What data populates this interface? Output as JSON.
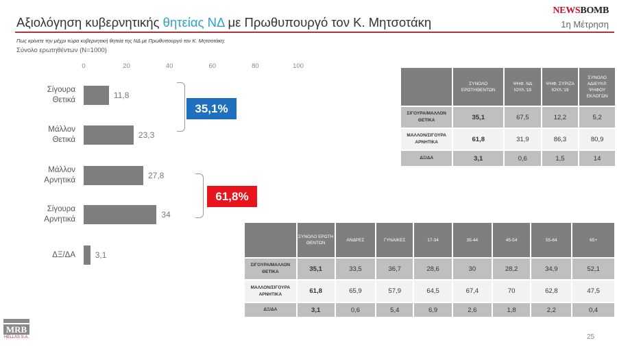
{
  "header": {
    "title_pre": "Αξιολόγηση κυβερνητικής ",
    "title_hl": "θητείας ΝΔ",
    "title_post": " με Πρωθυπουργό τον Κ. Μητσοτάκη",
    "logo_a": "NEWS",
    "logo_b": "BOMB",
    "measurement": "1η Μέτρηση"
  },
  "question": "Πως κρίνετε την μέχρι τώρα κυβερνητική θητεία της ΝΔ με Πρωθυπουργό τον Κ. Μητσοτάκη;",
  "base": "Σύνολο ερωτηθέντων (N=1000)",
  "chart_data": {
    "type": "bar",
    "orientation": "horizontal",
    "categories": [
      "Σίγουρα Θετικά",
      "Μάλλον Θετικά",
      "Μάλλον Αρνητικά",
      "Σίγουρα Αρνητικά",
      "ΔΞ/ΔΑ"
    ],
    "values": [
      11.8,
      23.3,
      27.8,
      34,
      3.1
    ],
    "value_labels": [
      "11,8",
      "23,3",
      "27,8",
      "34",
      "3,1"
    ],
    "xlim": [
      0,
      100
    ],
    "ticks": [
      "0",
      "20",
      "40",
      "60",
      "80",
      "100"
    ],
    "annotations": [
      {
        "text": "35,1%",
        "color": "#1f6fbf"
      },
      {
        "text": "61,8%",
        "color": "#e8141b"
      }
    ]
  },
  "table1": {
    "headers": [
      "",
      "ΣΥΝΟΛΟ ΕΡΩΤΗΘΕΝΤΩΝ",
      "ΨΗΦ. ΝΔ ΙΟΥΛ.'19",
      "ΨΗΦ. ΣΥΡΙΖΑ ΙΟΥΛ.'19",
      "ΣΥΝΟΛΟ ΑΔΙΕΥΚΡ. ΨΗΦΟΥ ΕΚΛΟΓΩΝ"
    ],
    "rows": [
      [
        "ΣΙΓΟΥΡΑ/ΜΑΛΛΟΝ ΘΕΤΙΚΑ",
        "35,1",
        "67,5",
        "12,2",
        "5,2"
      ],
      [
        "ΜΑΛΛΟΝ/ΣΙΓΟΥΡΑ ΑΡΝΗΤΙΚΑ",
        "61,8",
        "31,9",
        "86,3",
        "80,9"
      ],
      [
        "ΔΞ/ΔΑ",
        "3,1",
        "0,6",
        "1,5",
        "14"
      ]
    ]
  },
  "table2": {
    "headers": [
      "",
      "ΣΥΝΟΛΟ ΕΡΩΤΗ ΘΕΝΤΩΝ",
      "ΑΝΔΡΕΣ",
      "ΓΥΝΑΙΚΕΣ",
      "17-34",
      "35-44",
      "45-54",
      "55-64",
      "65+"
    ],
    "rows": [
      [
        "ΣΙΓΟΥΡΑ/ΜΑΛΛΟΝ ΘΕΤΙΚΑ",
        "35,1",
        "33,5",
        "36,7",
        "28,6",
        "30",
        "28,2",
        "34,9",
        "52,1"
      ],
      [
        "ΜΑΛΛΟΝ/ΣΙΓΟΥΡΑ ΑΡΝΗΤΙΚΑ",
        "61,8",
        "65,9",
        "57,9",
        "64,5",
        "67,4",
        "70",
        "62,8",
        "47,5"
      ],
      [
        "ΔΞ/ΔΑ",
        "3,1",
        "0,6",
        "5,4",
        "6,9",
        "2,6",
        "1,8",
        "2,2",
        "0,4"
      ]
    ]
  },
  "footer": {
    "logo": "MRB",
    "logo_sub": "HELLAS S.A.",
    "page": "25"
  },
  "colors": {
    "bar": "#7f7f7f",
    "accent_rule": "#b0353a",
    "positive": "#1f6fbf",
    "negative": "#e8141b"
  }
}
